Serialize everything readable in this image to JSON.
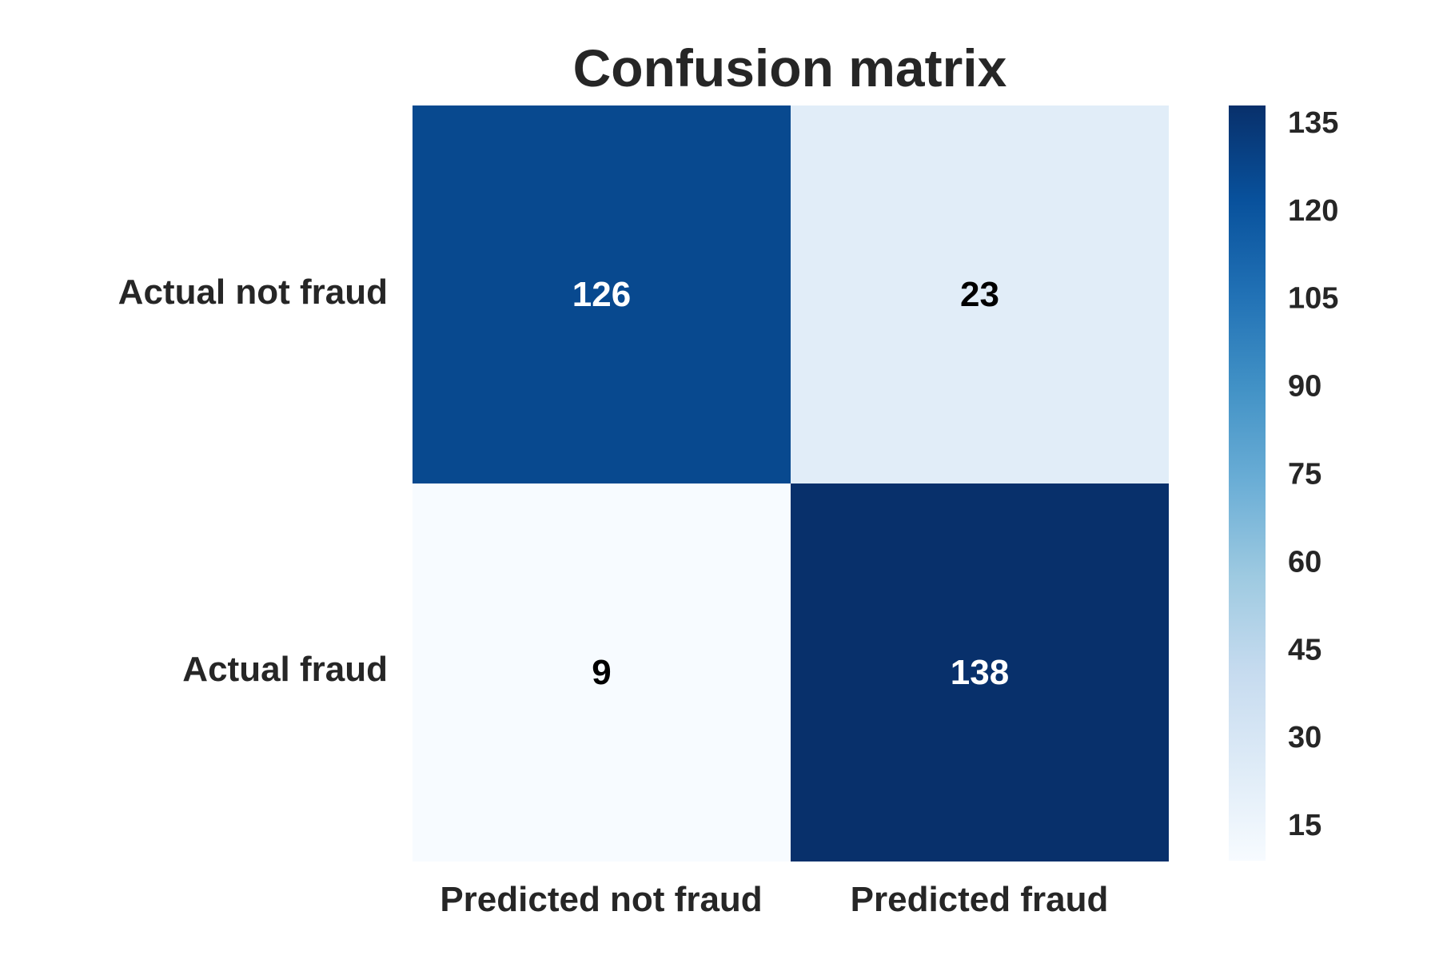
{
  "chart_data": {
    "type": "heatmap",
    "title": "Confusion matrix",
    "row_labels": [
      "Actual not fraud",
      "Actual fraud"
    ],
    "col_labels": [
      "Predicted not fraud",
      "Predicted fraud"
    ],
    "values": [
      [
        126,
        23
      ],
      [
        9,
        138
      ]
    ],
    "colormap": "Blues",
    "vmin": 9,
    "vmax": 138,
    "colorbar": {
      "ticks": [
        15,
        30,
        45,
        60,
        75,
        90,
        105,
        120,
        135
      ],
      "placement": "right"
    },
    "text_colors": {
      "light": "#ffffff",
      "dark": "#000000"
    }
  }
}
